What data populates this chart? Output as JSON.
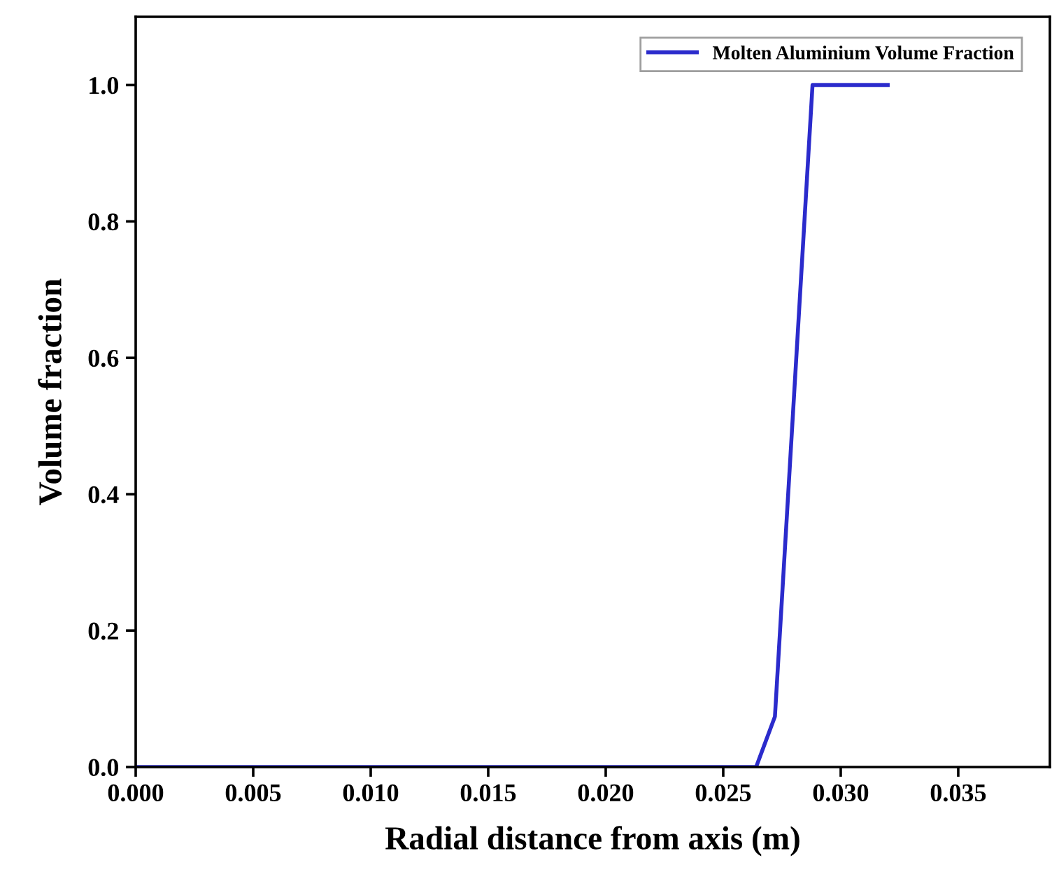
{
  "chart_data": {
    "type": "line",
    "xlabel": "Radial distance from axis (m)",
    "ylabel": "Volume fraction",
    "series": [
      {
        "name": "Molten Aluminium Volume Fraction",
        "color": "#2b2bcc",
        "x": [
          0,
          0.0264,
          0.0272,
          0.0288,
          0.032
        ],
        "values": [
          0,
          0,
          0.074,
          1.0,
          1.0
        ]
      }
    ],
    "xlim": [
      0,
      0.0389
    ],
    "ylim": [
      0,
      1.1
    ],
    "xticks": [
      {
        "value": 0,
        "label": "0.000"
      },
      0.005,
      {
        "value": 0.01,
        "label": "0.010"
      },
      0.015,
      {
        "value": 0.02,
        "label": "0.020"
      },
      0.025,
      {
        "value": 0.03,
        "label": "0.030"
      },
      0.035
    ],
    "yticks": [
      {
        "value": 0,
        "label": "0.0"
      },
      0.2,
      0.4,
      0.6,
      0.8,
      {
        "value": 1,
        "label": "1.0"
      }
    ],
    "legend": "top right",
    "grid": false,
    "marker": "none",
    "line_style": "solid"
  }
}
